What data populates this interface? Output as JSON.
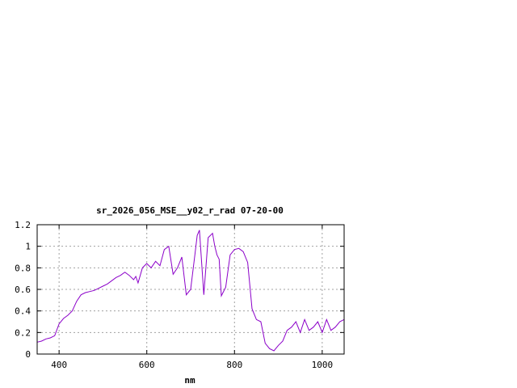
{
  "chart_data": {
    "type": "line",
    "title": "sr_2026_056_MSE__y02_r_rad 07-20-00",
    "xlabel": "nm",
    "ylabel": "",
    "xlim": [
      350,
      1050
    ],
    "ylim": [
      0,
      1.2
    ],
    "x_ticks": [
      400,
      600,
      800,
      1000
    ],
    "x_tick_labels": [
      "400",
      "600",
      "800",
      "1000"
    ],
    "y_ticks": [
      0,
      0.2,
      0.4,
      0.6,
      0.8,
      1,
      1.2
    ],
    "y_tick_labels": [
      "0",
      "0.2",
      "0.4",
      "0.6",
      "0.8",
      "1",
      "1.2"
    ],
    "grid": true,
    "legend": "none",
    "series": [
      {
        "color": "#8b00c9",
        "x": [
          350,
          360,
          370,
          380,
          390,
          400,
          410,
          420,
          430,
          440,
          450,
          460,
          470,
          480,
          490,
          500,
          510,
          520,
          530,
          540,
          550,
          560,
          570,
          575,
          580,
          590,
          600,
          610,
          620,
          630,
          640,
          650,
          660,
          670,
          680,
          690,
          700,
          710,
          715,
          720,
          730,
          740,
          750,
          755,
          760,
          765,
          770,
          780,
          790,
          800,
          810,
          820,
          830,
          840,
          850,
          860,
          870,
          880,
          890,
          900,
          910,
          920,
          930,
          940,
          945,
          950,
          960,
          970,
          980,
          990,
          1000,
          1010,
          1020,
          1030,
          1040,
          1050
        ],
        "y": [
          0.11,
          0.12,
          0.14,
          0.15,
          0.17,
          0.28,
          0.33,
          0.36,
          0.4,
          0.49,
          0.55,
          0.57,
          0.58,
          0.59,
          0.61,
          0.63,
          0.65,
          0.68,
          0.71,
          0.73,
          0.76,
          0.73,
          0.69,
          0.72,
          0.66,
          0.8,
          0.84,
          0.8,
          0.86,
          0.82,
          0.97,
          1.0,
          0.74,
          0.8,
          0.9,
          0.55,
          0.6,
          0.93,
          1.1,
          1.15,
          0.55,
          1.08,
          1.12,
          1.0,
          0.92,
          0.88,
          0.54,
          0.62,
          0.92,
          0.97,
          0.98,
          0.95,
          0.85,
          0.42,
          0.32,
          0.3,
          0.1,
          0.05,
          0.03,
          0.08,
          0.12,
          0.22,
          0.25,
          0.3,
          0.25,
          0.2,
          0.32,
          0.22,
          0.25,
          0.3,
          0.2,
          0.32,
          0.22,
          0.25,
          0.3,
          0.32
        ]
      }
    ]
  }
}
